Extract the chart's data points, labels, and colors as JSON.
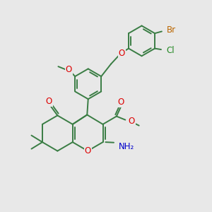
{
  "bg_color": "#e8e8e8",
  "bond_color": "#3a7d44",
  "bond_width": 1.4,
  "atom_colors": {
    "O": "#dd0000",
    "N": "#0000cc",
    "Cl": "#228822",
    "Br": "#bb6600",
    "C": "#3a7d44"
  },
  "font_size": 8.5
}
